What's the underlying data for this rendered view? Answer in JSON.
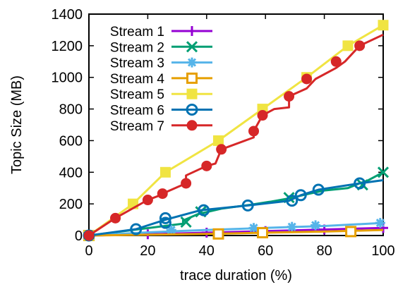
{
  "chart_data": {
    "type": "line",
    "title": "",
    "xlabel": "trace duration (%)",
    "ylabel": "Topic Size (MB)",
    "xlim": [
      0,
      100
    ],
    "ylim": [
      0,
      1400
    ],
    "xticks": [
      "0",
      "20",
      "40",
      "60",
      "80",
      "100"
    ],
    "yticks": [
      "0",
      "200",
      "400",
      "600",
      "800",
      "1000",
      "1200",
      "1400"
    ],
    "grid": false,
    "legend_position": "top-left",
    "series": [
      {
        "name": "Stream 1",
        "color": "#9400d3",
        "marker": "plus",
        "x": [
          0,
          20,
          40,
          60,
          80,
          100
        ],
        "y": [
          0,
          8,
          18,
          28,
          38,
          48
        ],
        "mx": [
          0,
          20,
          40,
          60,
          80,
          100
        ],
        "my": [
          0,
          8,
          18,
          28,
          38,
          48
        ]
      },
      {
        "name": "Stream 2",
        "color": "#009e73",
        "marker": "x",
        "x": [
          0,
          32,
          32,
          37,
          45,
          55,
          62,
          68,
          75,
          80,
          88,
          92,
          95,
          100
        ],
        "y": [
          0,
          75,
          95,
          135,
          170,
          195,
          215,
          235,
          265,
          285,
          300,
          330,
          350,
          400
        ],
        "mx": [
          0,
          33,
          38,
          68,
          93,
          100
        ],
        "my": [
          0,
          85,
          150,
          240,
          320,
          400
        ]
      },
      {
        "name": "Stream 3",
        "color": "#56b4e9",
        "marker": "star",
        "x": [
          0,
          20,
          40,
          60,
          80,
          100
        ],
        "y": [
          0,
          20,
          35,
          48,
          60,
          80
        ],
        "mx": [
          0,
          28,
          56,
          69,
          77,
          99
        ],
        "my": [
          0,
          35,
          48,
          55,
          65,
          80
        ]
      },
      {
        "name": "Stream 4",
        "color": "#e69f00",
        "marker": "square-open",
        "x": [
          0,
          20,
          40,
          60,
          80,
          100
        ],
        "y": [
          0,
          5,
          10,
          18,
          25,
          35
        ],
        "mx": [
          0,
          44,
          59,
          89
        ],
        "my": [
          0,
          10,
          18,
          25
        ]
      },
      {
        "name": "Stream 5",
        "color": "#f0e442",
        "marker": "square-filled",
        "x": [
          0,
          15,
          26,
          44,
          59,
          74,
          88,
          100
        ],
        "y": [
          0,
          200,
          400,
          600,
          800,
          1000,
          1200,
          1330
        ],
        "mx": [
          0,
          15,
          26,
          44,
          59,
          74,
          88,
          100
        ],
        "my": [
          0,
          200,
          400,
          600,
          800,
          1000,
          1200,
          1330
        ]
      },
      {
        "name": "Stream 6",
        "color": "#0072b2",
        "marker": "circle-open",
        "x": [
          0,
          16,
          26,
          38,
          54,
          68,
          72,
          78,
          92,
          100
        ],
        "y": [
          0,
          40,
          100,
          160,
          190,
          220,
          255,
          290,
          330,
          350
        ],
        "mx": [
          0,
          16,
          26,
          26,
          39,
          54,
          69,
          72,
          78,
          92
        ],
        "my": [
          0,
          40,
          80,
          110,
          160,
          190,
          220,
          255,
          290,
          330
        ]
      },
      {
        "name": "Stream 7",
        "color": "#d62728",
        "marker": "circle-filled",
        "x": [
          0,
          9,
          20,
          25,
          25,
          33,
          33,
          40,
          43,
          45,
          56,
          56,
          59,
          63,
          68,
          68,
          74,
          77,
          84,
          87,
          92,
          100
        ],
        "y": [
          0,
          110,
          225,
          260,
          265,
          330,
          380,
          440,
          455,
          545,
          620,
          660,
          760,
          800,
          810,
          880,
          930,
          990,
          1060,
          1100,
          1200,
          1270
        ],
        "mx": [
          0,
          9,
          20,
          25,
          33,
          40,
          45,
          56,
          59,
          68,
          74,
          84,
          92
        ],
        "my": [
          0,
          110,
          225,
          265,
          330,
          440,
          545,
          660,
          760,
          880,
          990,
          1100,
          1200
        ]
      }
    ]
  }
}
